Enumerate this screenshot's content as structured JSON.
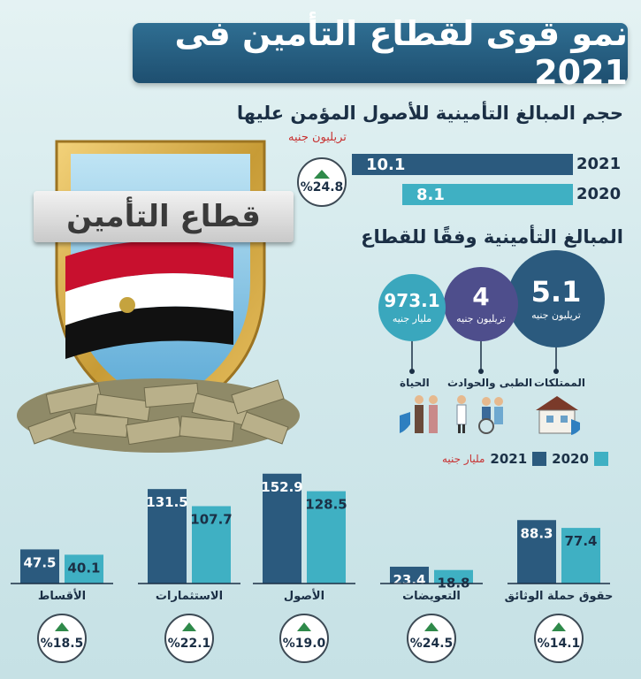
{
  "title": "نمو قوى لقطاع التأمين فى 2021",
  "shield_label": "قطاع التأمين",
  "section1": {
    "title": "حجم المبالغ التأمينية للأصول المؤمن عليها",
    "unit": "تريليون جنيه",
    "rows": [
      {
        "year": "2021",
        "value": "10.1"
      },
      {
        "year": "2020",
        "value": "8.1"
      }
    ],
    "growth": "%24.8"
  },
  "section2": {
    "title": "المبالغ التأمينية وفقًا للقطاع",
    "bubbles": [
      {
        "value": "5.1",
        "unit": "تريليون جنيه",
        "label": "الممتلكات"
      },
      {
        "value": "4",
        "unit": "تريليون جنيه",
        "label": "الطبى والحوادث"
      },
      {
        "value": "973.1",
        "unit": "مليار جنيه",
        "label": "الحياة"
      }
    ]
  },
  "legend": {
    "year_2020": "2020",
    "year_2021": "2021",
    "unit": "مليار جنيه"
  },
  "colors": {
    "dark": "#2b5a7e",
    "light": "#3fb0c3",
    "banner": "#1e4f70",
    "bubble_large": "#2b5a7e",
    "bubble_mid": "#4e4e8c",
    "bubble_small": "#3aa7bd"
  },
  "chart_data": {
    "type": "bar",
    "categories": [
      "حقوق حملة الوثائق",
      "التعويضات",
      "الأصول",
      "الاستثمارات",
      "الأقساط"
    ],
    "series": [
      {
        "name": "2021",
        "values": [
          88.3,
          23.4,
          152.9,
          131.5,
          47.5
        ]
      },
      {
        "name": "2020",
        "values": [
          77.4,
          18.8,
          128.5,
          107.7,
          40.1
        ]
      }
    ],
    "growth": [
      "%14.1",
      "%24.5",
      "%19.0",
      "%22.1",
      "%18.5"
    ],
    "ylim": [
      0,
      160
    ]
  }
}
